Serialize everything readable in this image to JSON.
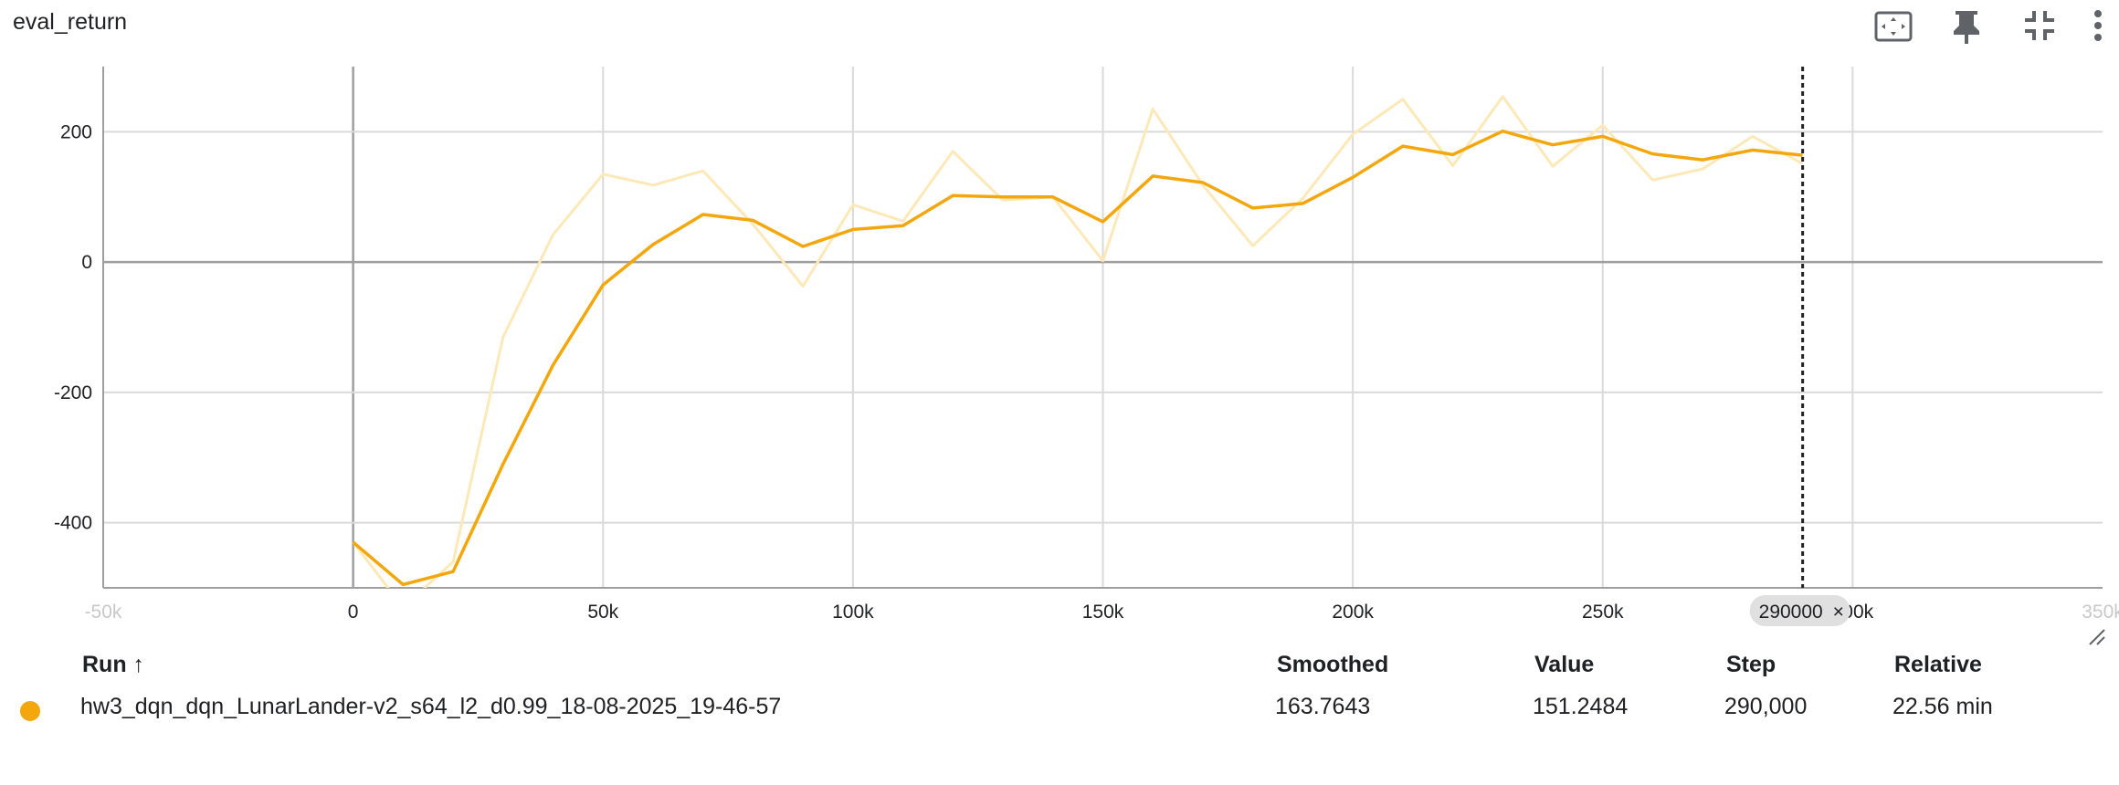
{
  "card": {
    "title": "eval_return",
    "toolbar": [
      {
        "icon": "fit-domain-icon"
      },
      {
        "icon": "pin-icon"
      },
      {
        "icon": "collapse-icon"
      },
      {
        "icon": "more-vert-icon"
      }
    ]
  },
  "chart_data": {
    "type": "line",
    "title": "",
    "xlabel": "",
    "ylabel": "",
    "xlim": [
      -50000,
      350000
    ],
    "ylim": [
      -500,
      300
    ],
    "x_ticks": [
      -50000,
      0,
      50000,
      100000,
      150000,
      200000,
      250000,
      300000,
      350000
    ],
    "x_tick_labels": [
      "-50k",
      "0",
      "50k",
      "100k",
      "150k",
      "200k",
      "250k",
      "300k",
      "350k"
    ],
    "y_ticks": [
      -400,
      -200,
      0,
      200
    ],
    "y_tick_labels": [
      "-400",
      "-200",
      "0",
      "200"
    ],
    "grid": true,
    "x": [
      0,
      10000,
      20000,
      30000,
      40000,
      50000,
      60000,
      70000,
      80000,
      90000,
      100000,
      110000,
      120000,
      130000,
      140000,
      150000,
      160000,
      170000,
      180000,
      190000,
      200000,
      210000,
      220000,
      230000,
      240000,
      250000,
      260000,
      270000,
      280000,
      290000
    ],
    "series": [
      {
        "name": "",
        "color": "#fde8b8",
        "values": [
          -430,
          -530,
          -460,
          -115,
          42,
          135,
          118,
          140,
          58,
          -37,
          88,
          63,
          170,
          95,
          100,
          2,
          235,
          118,
          25,
          98,
          196,
          250,
          148,
          254,
          147,
          210,
          126,
          143,
          193,
          151
        ]
      },
      {
        "name": "",
        "color": "#f4a70c",
        "values": [
          -430,
          -495,
          -475,
          -310,
          -158,
          -35,
          27,
          73,
          64,
          24,
          50,
          56,
          102,
          100,
          100,
          62,
          132,
          122,
          83,
          90,
          130,
          178,
          165,
          201,
          180,
          193,
          166,
          157,
          172,
          164
        ]
      }
    ],
    "hover": {
      "step": 290000,
      "step_label": "290000"
    }
  },
  "table": {
    "headers": {
      "run": "Run ↑",
      "smoothed": "Smoothed",
      "value": "Value",
      "step": "Step",
      "relative": "Relative"
    },
    "rows": [
      {
        "color": "#f4a70c",
        "run": "hw3_dqn_dqn_LunarLander-v2_s64_l2_d0.99_18-08-2025_19-46-57",
        "smoothed": "163.7643",
        "value": "151.2484",
        "step": "290,000",
        "relative": "22.56 min"
      }
    ]
  }
}
